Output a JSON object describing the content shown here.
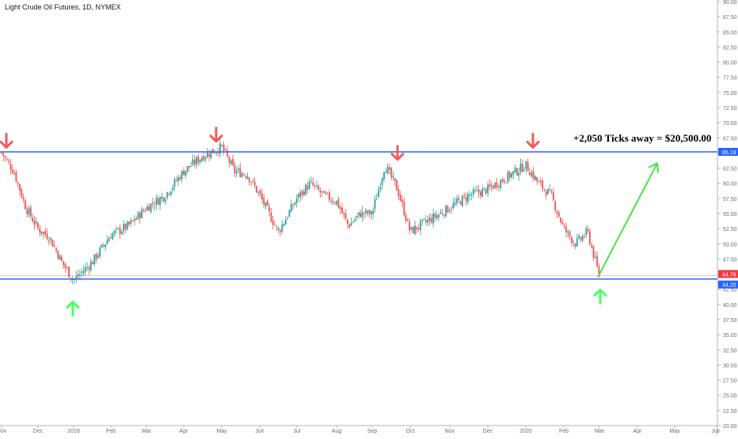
{
  "header": {
    "symbol_title": "Light Crude Oil Futures, 1D, NYMEX"
  },
  "annotation": {
    "text": "+2,050 Ticks away = $20,500.00"
  },
  "colors": {
    "up_candle": "#26a69a",
    "down_candle": "#ef5350",
    "candle_body_up": "#ffffff",
    "candle_body_down": "#000000",
    "resistance_line": "#2962ff",
    "support_line": "#2962ff",
    "arrow_down": "#f25b5b",
    "arrow_up": "#4cff66",
    "projection_arrow": "#46e646",
    "resistance_label_bg": "#2962ff",
    "current_price_label_bg": "#f23645",
    "support_label_bg": "#2962ff"
  },
  "chart_data": {
    "type": "line",
    "title": "Light Crude Oil Futures, 1D, NYMEX",
    "xlabel": "",
    "ylabel": "",
    "ylim": [
      20.0,
      90.0
    ],
    "grid": false,
    "x_tick_labels": [
      "Nov",
      "Dec",
      "2019",
      "Feb",
      "Mar",
      "Apr",
      "May",
      "Jun",
      "Jul",
      "Aug",
      "Sep",
      "Oct",
      "Nov",
      "Dec",
      "2020",
      "Feb",
      "Mar",
      "Apr",
      "May",
      "Jun"
    ],
    "y_tick_labels": [
      "90.00",
      "87.50",
      "85.00",
      "82.50",
      "80.00",
      "77.50",
      "75.00",
      "72.50",
      "70.00",
      "67.50",
      "65.00",
      "62.50",
      "60.00",
      "57.50",
      "55.00",
      "52.50",
      "50.00",
      "47.50",
      "45.00",
      "42.50",
      "40.00",
      "37.50",
      "35.00",
      "32.50",
      "30.00",
      "27.50",
      "25.00",
      "22.50",
      "20.00"
    ],
    "price_labels": [
      {
        "value": "65.19",
        "role": "resistance"
      },
      {
        "value": "44.76",
        "role": "current"
      },
      {
        "value": "44.20",
        "role": "support"
      }
    ],
    "horizontal_levels": {
      "resistance": 65.19,
      "support": 44.2,
      "current": 44.76
    },
    "series": [
      {
        "x": [
          "Nov 2018",
          "Nov 2018",
          "Nov 2018",
          "Dec 2018",
          "Dec 2018",
          "Dec 2018",
          "2019",
          "2019",
          "Feb 2019",
          "Feb 2019",
          "Mar 2019",
          "Mar 2019",
          "Apr 2019",
          "Apr 2019",
          "May 2019",
          "May 2019",
          "May 2019",
          "Jun 2019",
          "Jun 2019",
          "Jul 2019",
          "Jul 2019",
          "Jul 2019",
          "Aug 2019",
          "Aug 2019",
          "Aug 2019",
          "Sep 2019",
          "Sep 2019",
          "Sep 2019",
          "Oct 2019",
          "Oct 2019",
          "Nov 2019",
          "Nov 2019",
          "Dec 2019",
          "Dec 2019",
          "2020",
          "2020",
          "2020",
          "Feb 2020",
          "Feb 2020",
          "Feb 2020",
          "Mar 2020"
        ],
        "y": [
          65.0,
          62.0,
          56.0,
          52.5,
          51.0,
          47.0,
          44.0,
          47.0,
          51.5,
          53.0,
          56.0,
          58.0,
          62.0,
          64.5,
          66.0,
          62.0,
          61.5,
          58.0,
          52.0,
          57.5,
          60.0,
          58.0,
          57.0,
          53.0,
          55.0,
          55.0,
          63.0,
          59.0,
          52.0,
          54.0,
          56.0,
          58.0,
          59.0,
          61.0,
          63.0,
          60.0,
          58.0,
          52.5,
          50.0,
          52.0,
          44.5
        ]
      }
    ],
    "markers": {
      "down_arrows": [
        {
          "x": "Nov 2018",
          "y": 65.0
        },
        {
          "x": "Apr 2019",
          "y": 66.0
        },
        {
          "x": "Sep 2019",
          "y": 63.0
        },
        {
          "x": "2020",
          "y": 65.0
        }
      ],
      "up_arrows": [
        {
          "x": "Dec 2018",
          "y": 42.5
        },
        {
          "x": "Mar 2020",
          "y": 44.5
        }
      ]
    },
    "projection": {
      "from": {
        "x": "Mar 2020",
        "y": 44.5
      },
      "to": {
        "x": "Apr 2020",
        "y": 62.5
      }
    }
  }
}
